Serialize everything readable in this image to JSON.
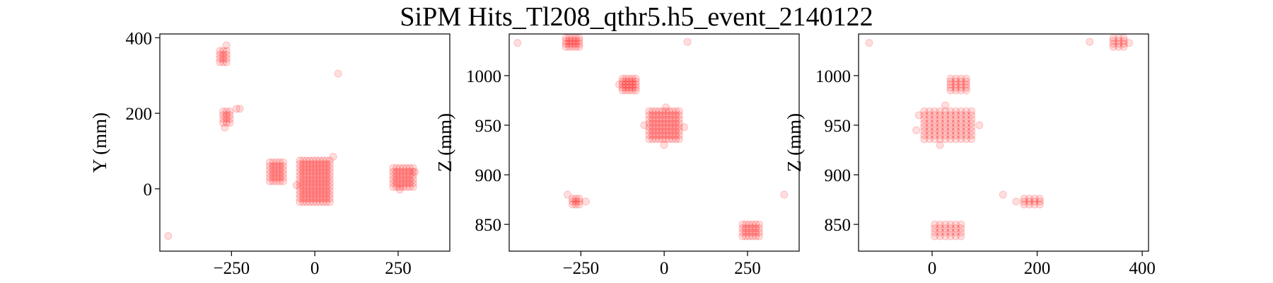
{
  "figure": {
    "title": "SiPM Hits_Tl208_qthr5.h5_event_2140122"
  },
  "chart_data": [
    {
      "type": "scatter",
      "xlabel": "",
      "ylabel": "Y (mm)",
      "xlim": [
        -465,
        405
      ],
      "ylim": [
        -165,
        410
      ],
      "xticks": [
        -250,
        0,
        250
      ],
      "yticks": [
        0,
        200,
        400
      ],
      "marker_color": "#ff0000",
      "clusters": [
        {
          "xs": [
            -285,
            -275,
            -265
          ],
          "ys": [
            335,
            345,
            355,
            365
          ]
        },
        {
          "xs": [
            -275,
            -265,
            -255
          ],
          "ys": [
            175,
            185,
            195,
            205
          ]
        },
        {
          "xs": [
            -135,
            -125,
            -115,
            -105,
            -95
          ],
          "ys": [
            20,
            30,
            40,
            50,
            60,
            70
          ]
        },
        {
          "xs": [
            -45,
            -35,
            -25,
            -15,
            -5,
            5,
            15,
            25,
            35,
            45
          ],
          "ys": [
            -35,
            -25,
            -15,
            -5,
            5,
            15,
            25,
            35,
            45,
            55,
            65,
            75
          ]
        },
        {
          "xs": [
            235,
            245,
            255,
            265,
            275,
            285,
            295
          ],
          "ys": [
            5,
            15,
            25,
            35,
            45,
            55
          ]
        }
      ],
      "points": [
        [
          -440,
          -125
        ],
        [
          70,
          305
        ],
        [
          -265,
          380
        ],
        [
          -235,
          212
        ],
        [
          -225,
          212
        ],
        [
          -270,
          162
        ],
        [
          55,
          85
        ],
        [
          -55,
          10
        ],
        [
          255,
          -2
        ],
        [
          300,
          45
        ]
      ]
    },
    {
      "type": "scatter",
      "xlabel": "",
      "ylabel": "Z (mm)",
      "xlim": [
        -465,
        405
      ],
      "ylim": [
        823,
        1042
      ],
      "xticks": [
        -250,
        0,
        250
      ],
      "yticks": [
        850,
        900,
        950,
        1000
      ],
      "marker_color": "#ff0000",
      "clusters": [
        {
          "xs": [
            -295,
            -285,
            -275,
            -265,
            -255
          ],
          "ys": [
            1029,
            1032,
            1035,
            1038
          ]
        },
        {
          "xs": [
            -125,
            -115,
            -105,
            -95,
            -85
          ],
          "ys": [
            985,
            988,
            991,
            994,
            997
          ]
        },
        {
          "xs": [
            -45,
            -35,
            -25,
            -15,
            -5,
            5,
            15,
            25,
            35,
            45
          ],
          "ys": [
            936,
            940,
            944,
            948,
            952,
            956,
            960,
            964
          ]
        },
        {
          "xs": [
            -275,
            -265,
            -255
          ],
          "ys": [
            870,
            873,
            876
          ]
        },
        {
          "xs": [
            235,
            245,
            255,
            265,
            275,
            285
          ],
          "ys": [
            838,
            842,
            846,
            850
          ]
        }
      ],
      "points": [
        [
          -440,
          1033
        ],
        [
          70,
          1034
        ],
        [
          360,
          880
        ],
        [
          -290,
          880
        ],
        [
          -235,
          873
        ],
        [
          -60,
          950
        ],
        [
          60,
          948
        ],
        [
          0,
          930
        ],
        [
          5,
          968
        ],
        [
          -135,
          991
        ]
      ]
    },
    {
      "type": "scatter",
      "xlabel": "",
      "ylabel": "Z (mm)",
      "xlim": [
        -140,
        412
      ],
      "ylim": [
        823,
        1042
      ],
      "xticks": [
        0,
        200,
        400
      ],
      "yticks": [
        850,
        900,
        950,
        1000
      ],
      "marker_color": "#ff0000",
      "clusters": [
        {
          "xs": [
            -15,
            -5,
            5,
            15,
            25,
            35,
            45,
            55,
            65,
            75
          ],
          "ys": [
            936,
            940,
            944,
            948,
            952,
            956,
            960,
            964
          ]
        },
        {
          "xs": [
            35,
            45,
            55,
            65
          ],
          "ys": [
            985,
            988,
            991,
            994,
            997
          ]
        },
        {
          "xs": [
            5,
            15,
            25,
            35,
            45,
            55
          ],
          "ys": [
            838,
            842,
            846,
            850
          ]
        },
        {
          "xs": [
            175,
            185,
            195,
            205
          ],
          "ys": [
            870,
            873,
            876
          ]
        },
        {
          "xs": [
            345,
            355,
            365
          ],
          "ys": [
            1029,
            1032,
            1035,
            1038
          ]
        }
      ],
      "points": [
        [
          -120,
          1033
        ],
        [
          300,
          1034
        ],
        [
          375,
          1033
        ],
        [
          135,
          880
        ],
        [
          160,
          873
        ],
        [
          -30,
          945
        ],
        [
          90,
          950
        ],
        [
          15,
          930
        ],
        [
          -25,
          960
        ],
        [
          25,
          970
        ]
      ]
    }
  ]
}
